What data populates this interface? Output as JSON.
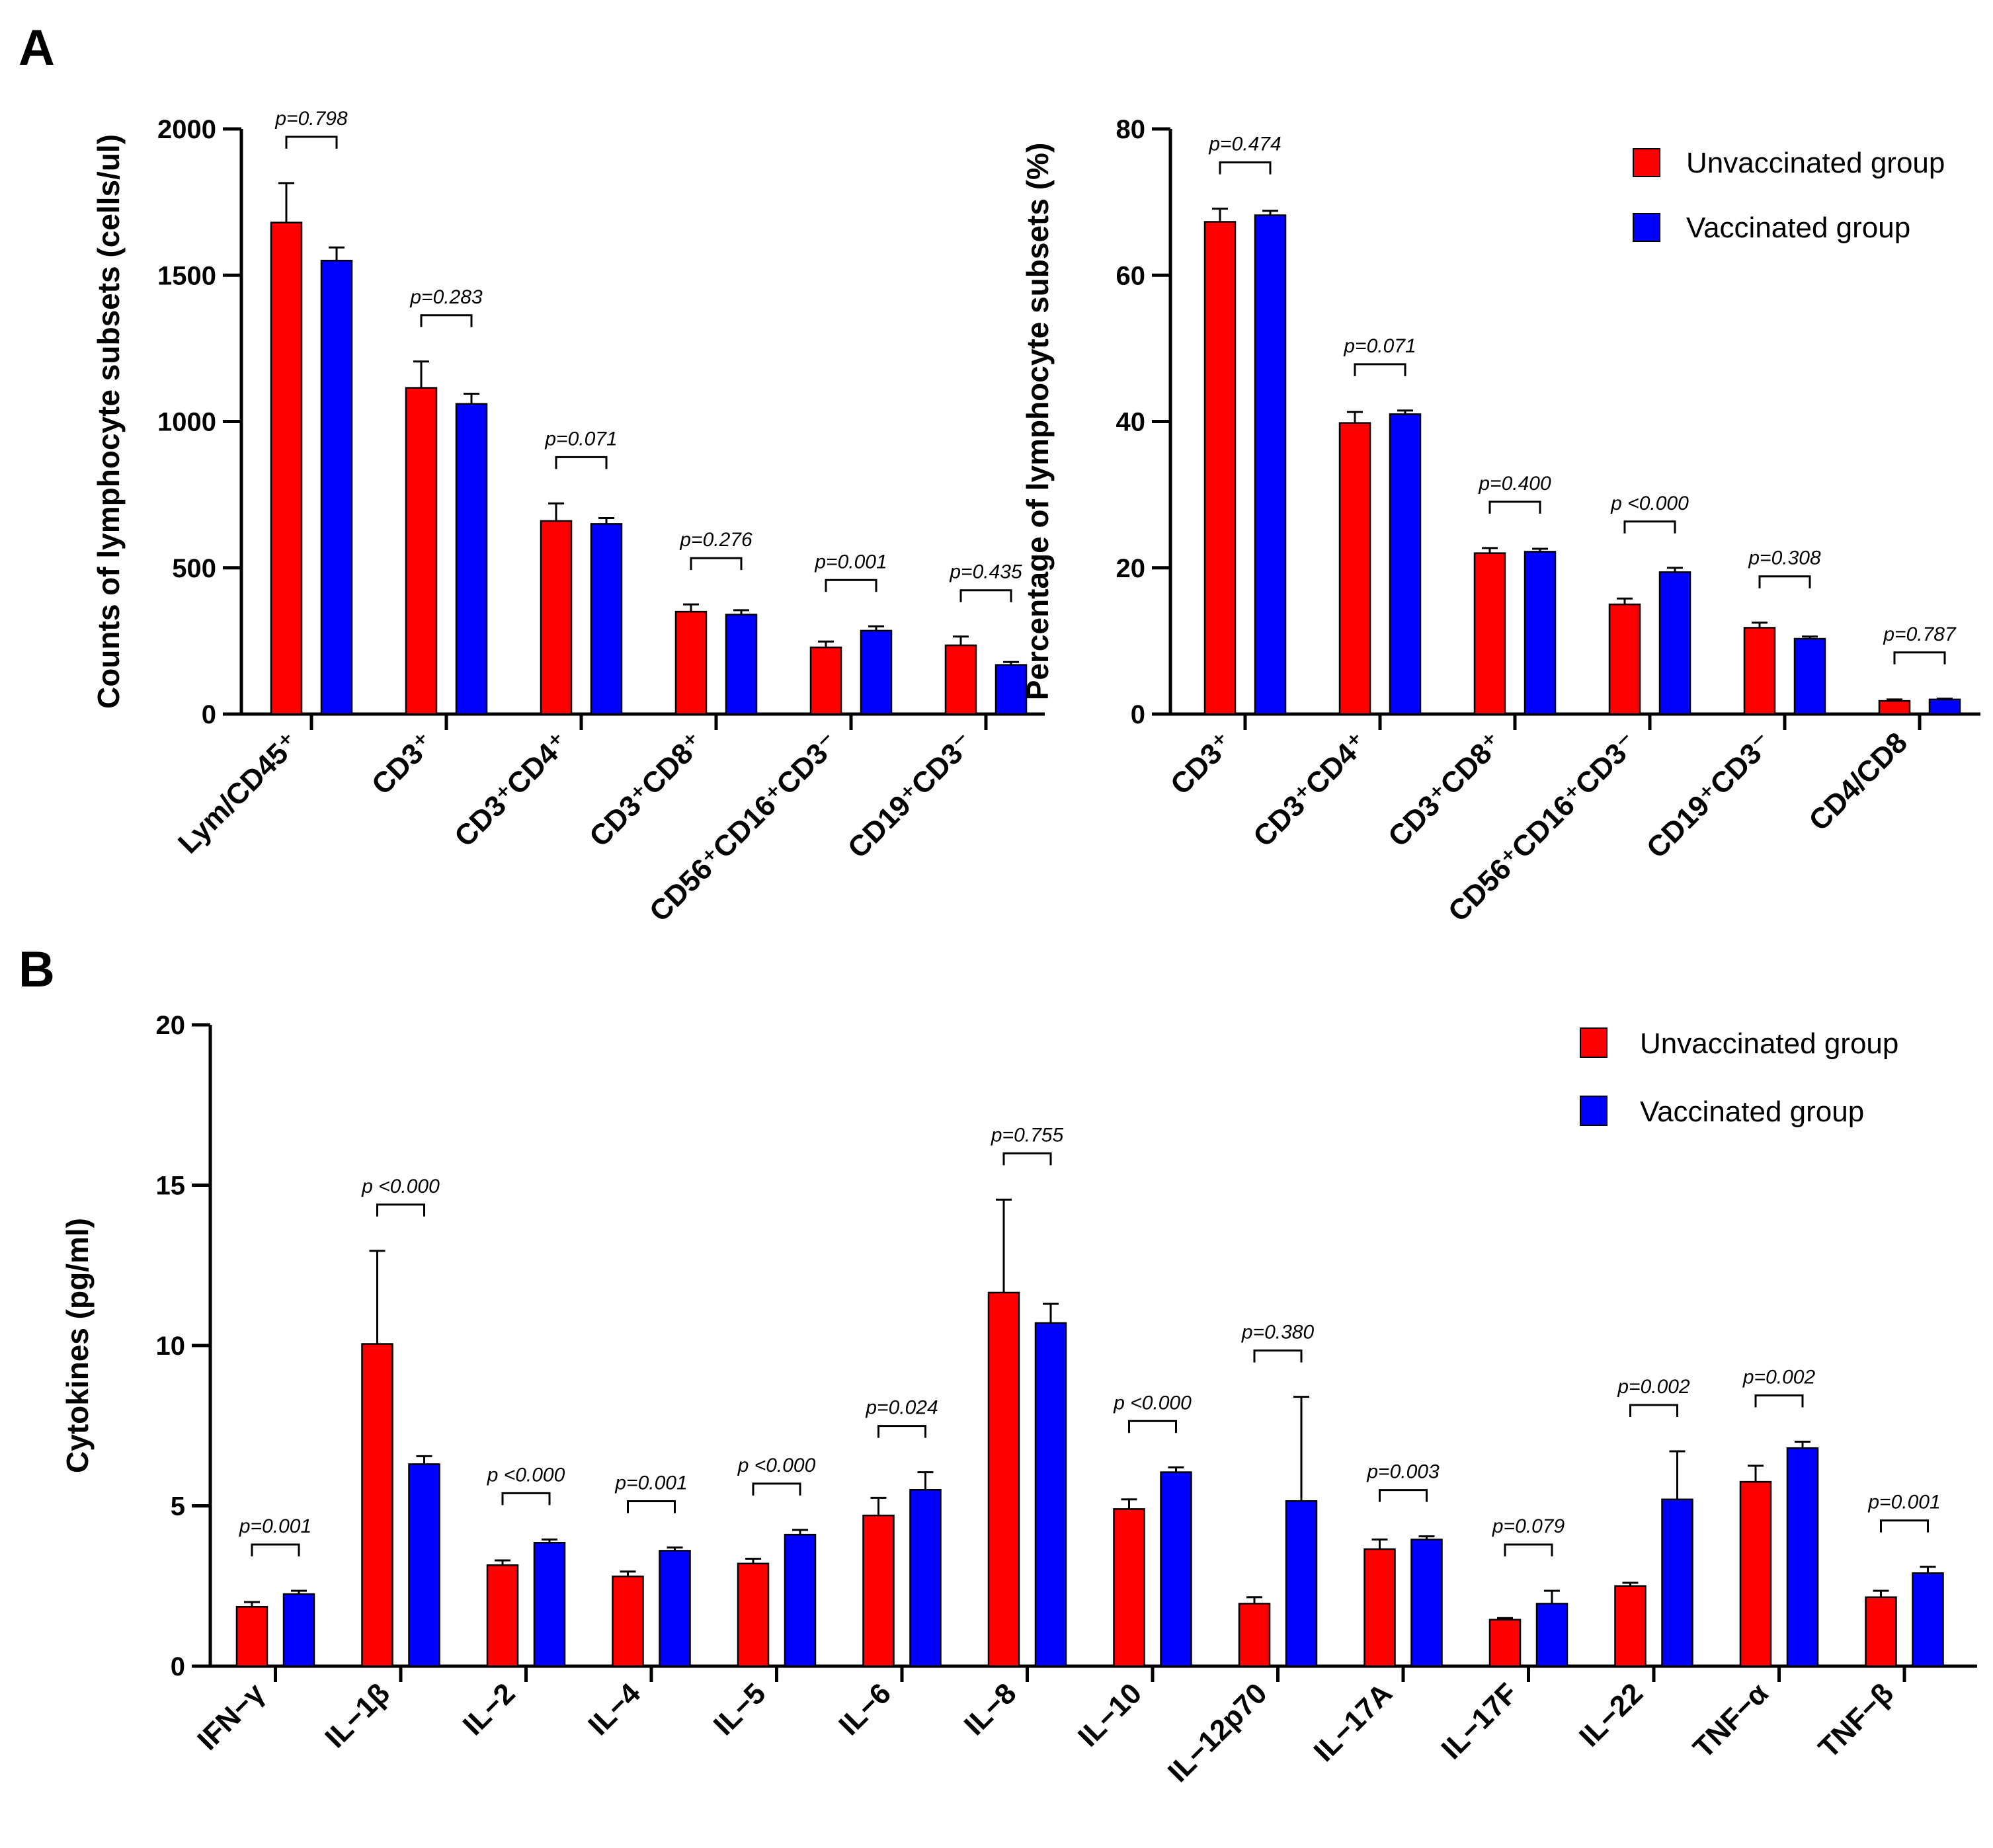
{
  "panels": [
    {
      "letter": "A"
    },
    {
      "letter": "B"
    }
  ],
  "colors": {
    "unvaccinated": "#FF0000",
    "vaccinated": "#0000FF",
    "axis": "#000000"
  },
  "chart_data": [
    {
      "type": "bar",
      "panel": "A",
      "title": "",
      "ylabel": "Counts of lymphocyte subsets (cells/ul)",
      "ylim": [
        0,
        2000
      ],
      "yticks": [
        0,
        500,
        1000,
        1500,
        2000
      ],
      "categories": [
        "Lym/CD45⁺",
        "CD3⁺",
        "CD3⁺CD4⁺",
        "CD3⁺CD8⁺",
        "CD56⁺CD16⁺CD3⁻",
        "CD19⁺CD3⁻"
      ],
      "series": [
        {
          "name": "Unvaccinated group",
          "values": [
            1680,
            1115,
            660,
            350,
            228,
            235
          ],
          "errors": [
            135,
            90,
            60,
            25,
            20,
            30
          ]
        },
        {
          "name": "Vaccinated group",
          "values": [
            1550,
            1060,
            650,
            340,
            285,
            168
          ],
          "errors": [
            45,
            35,
            20,
            15,
            15,
            10
          ]
        }
      ],
      "p_values": [
        "p=0.798",
        "p=0.283",
        "p=0.071",
        "p=0.276",
        "p=0.001",
        "p=0.435"
      ],
      "legend": false
    },
    {
      "type": "bar",
      "panel": "A",
      "title": "",
      "ylabel": "Percentage of lymphocyte subsets (%)",
      "ylim": [
        0,
        80
      ],
      "yticks": [
        0,
        20,
        40,
        60,
        80
      ],
      "categories": [
        "CD3⁺",
        "CD3⁺CD4⁺",
        "CD3⁺CD8⁺",
        "CD56⁺CD16⁺CD3⁻",
        "CD19⁺CD3⁻",
        "CD4/CD8"
      ],
      "series": [
        {
          "name": "Unvaccinated group",
          "values": [
            67.3,
            39.8,
            22.0,
            15.0,
            11.8,
            1.8
          ],
          "errors": [
            1.8,
            1.5,
            0.7,
            0.8,
            0.7,
            0.2
          ]
        },
        {
          "name": "Vaccinated group",
          "values": [
            68.2,
            41.0,
            22.2,
            19.4,
            10.3,
            2.0
          ],
          "errors": [
            0.6,
            0.5,
            0.4,
            0.6,
            0.3,
            0.1
          ]
        }
      ],
      "p_values": [
        "p=0.474",
        "p=0.071",
        "p=0.400",
        "p <0.000",
        "p=0.308",
        "p=0.787"
      ],
      "legend": true,
      "legend_position": "top-right"
    },
    {
      "type": "bar",
      "panel": "B",
      "title": "",
      "ylabel": "Cytokines (pg/ml)",
      "ylim": [
        0,
        20
      ],
      "yticks": [
        0,
        5,
        10,
        15,
        20
      ],
      "categories": [
        "IFN−γ",
        "IL−1β",
        "IL−2",
        "IL−4",
        "IL−5",
        "IL−6",
        "IL−8",
        "IL−10",
        "IL−12p70",
        "IL−17A",
        "IL−17F",
        "IL−22",
        "TNF−α",
        "TNF−β"
      ],
      "series": [
        {
          "name": "Unvaccinated group",
          "values": [
            1.85,
            10.05,
            3.15,
            2.8,
            3.2,
            4.7,
            11.65,
            4.9,
            1.95,
            3.65,
            1.45,
            2.5,
            5.75,
            2.15
          ],
          "errors": [
            0.15,
            2.9,
            0.15,
            0.15,
            0.15,
            0.55,
            2.9,
            0.3,
            0.2,
            0.3,
            0.05,
            0.1,
            0.5,
            0.2
          ]
        },
        {
          "name": "Vaccinated group",
          "values": [
            2.25,
            6.3,
            3.85,
            3.6,
            4.1,
            5.5,
            10.7,
            6.05,
            5.15,
            3.95,
            1.95,
            5.2,
            6.8,
            2.9
          ],
          "errors": [
            0.1,
            0.25,
            0.1,
            0.1,
            0.15,
            0.55,
            0.6,
            0.15,
            3.25,
            0.1,
            0.4,
            1.5,
            0.2,
            0.2
          ]
        }
      ],
      "p_values": [
        "p=0.001",
        "p <0.000",
        "p <0.000",
        "p=0.001",
        "p <0.000",
        "p=0.024",
        "p=0.755",
        "p <0.000",
        "p=0.380",
        "p=0.003",
        "p=0.079",
        "p=0.002",
        "p=0.002",
        "p=0.001"
      ],
      "legend": true,
      "legend_position": "top-right"
    }
  ]
}
